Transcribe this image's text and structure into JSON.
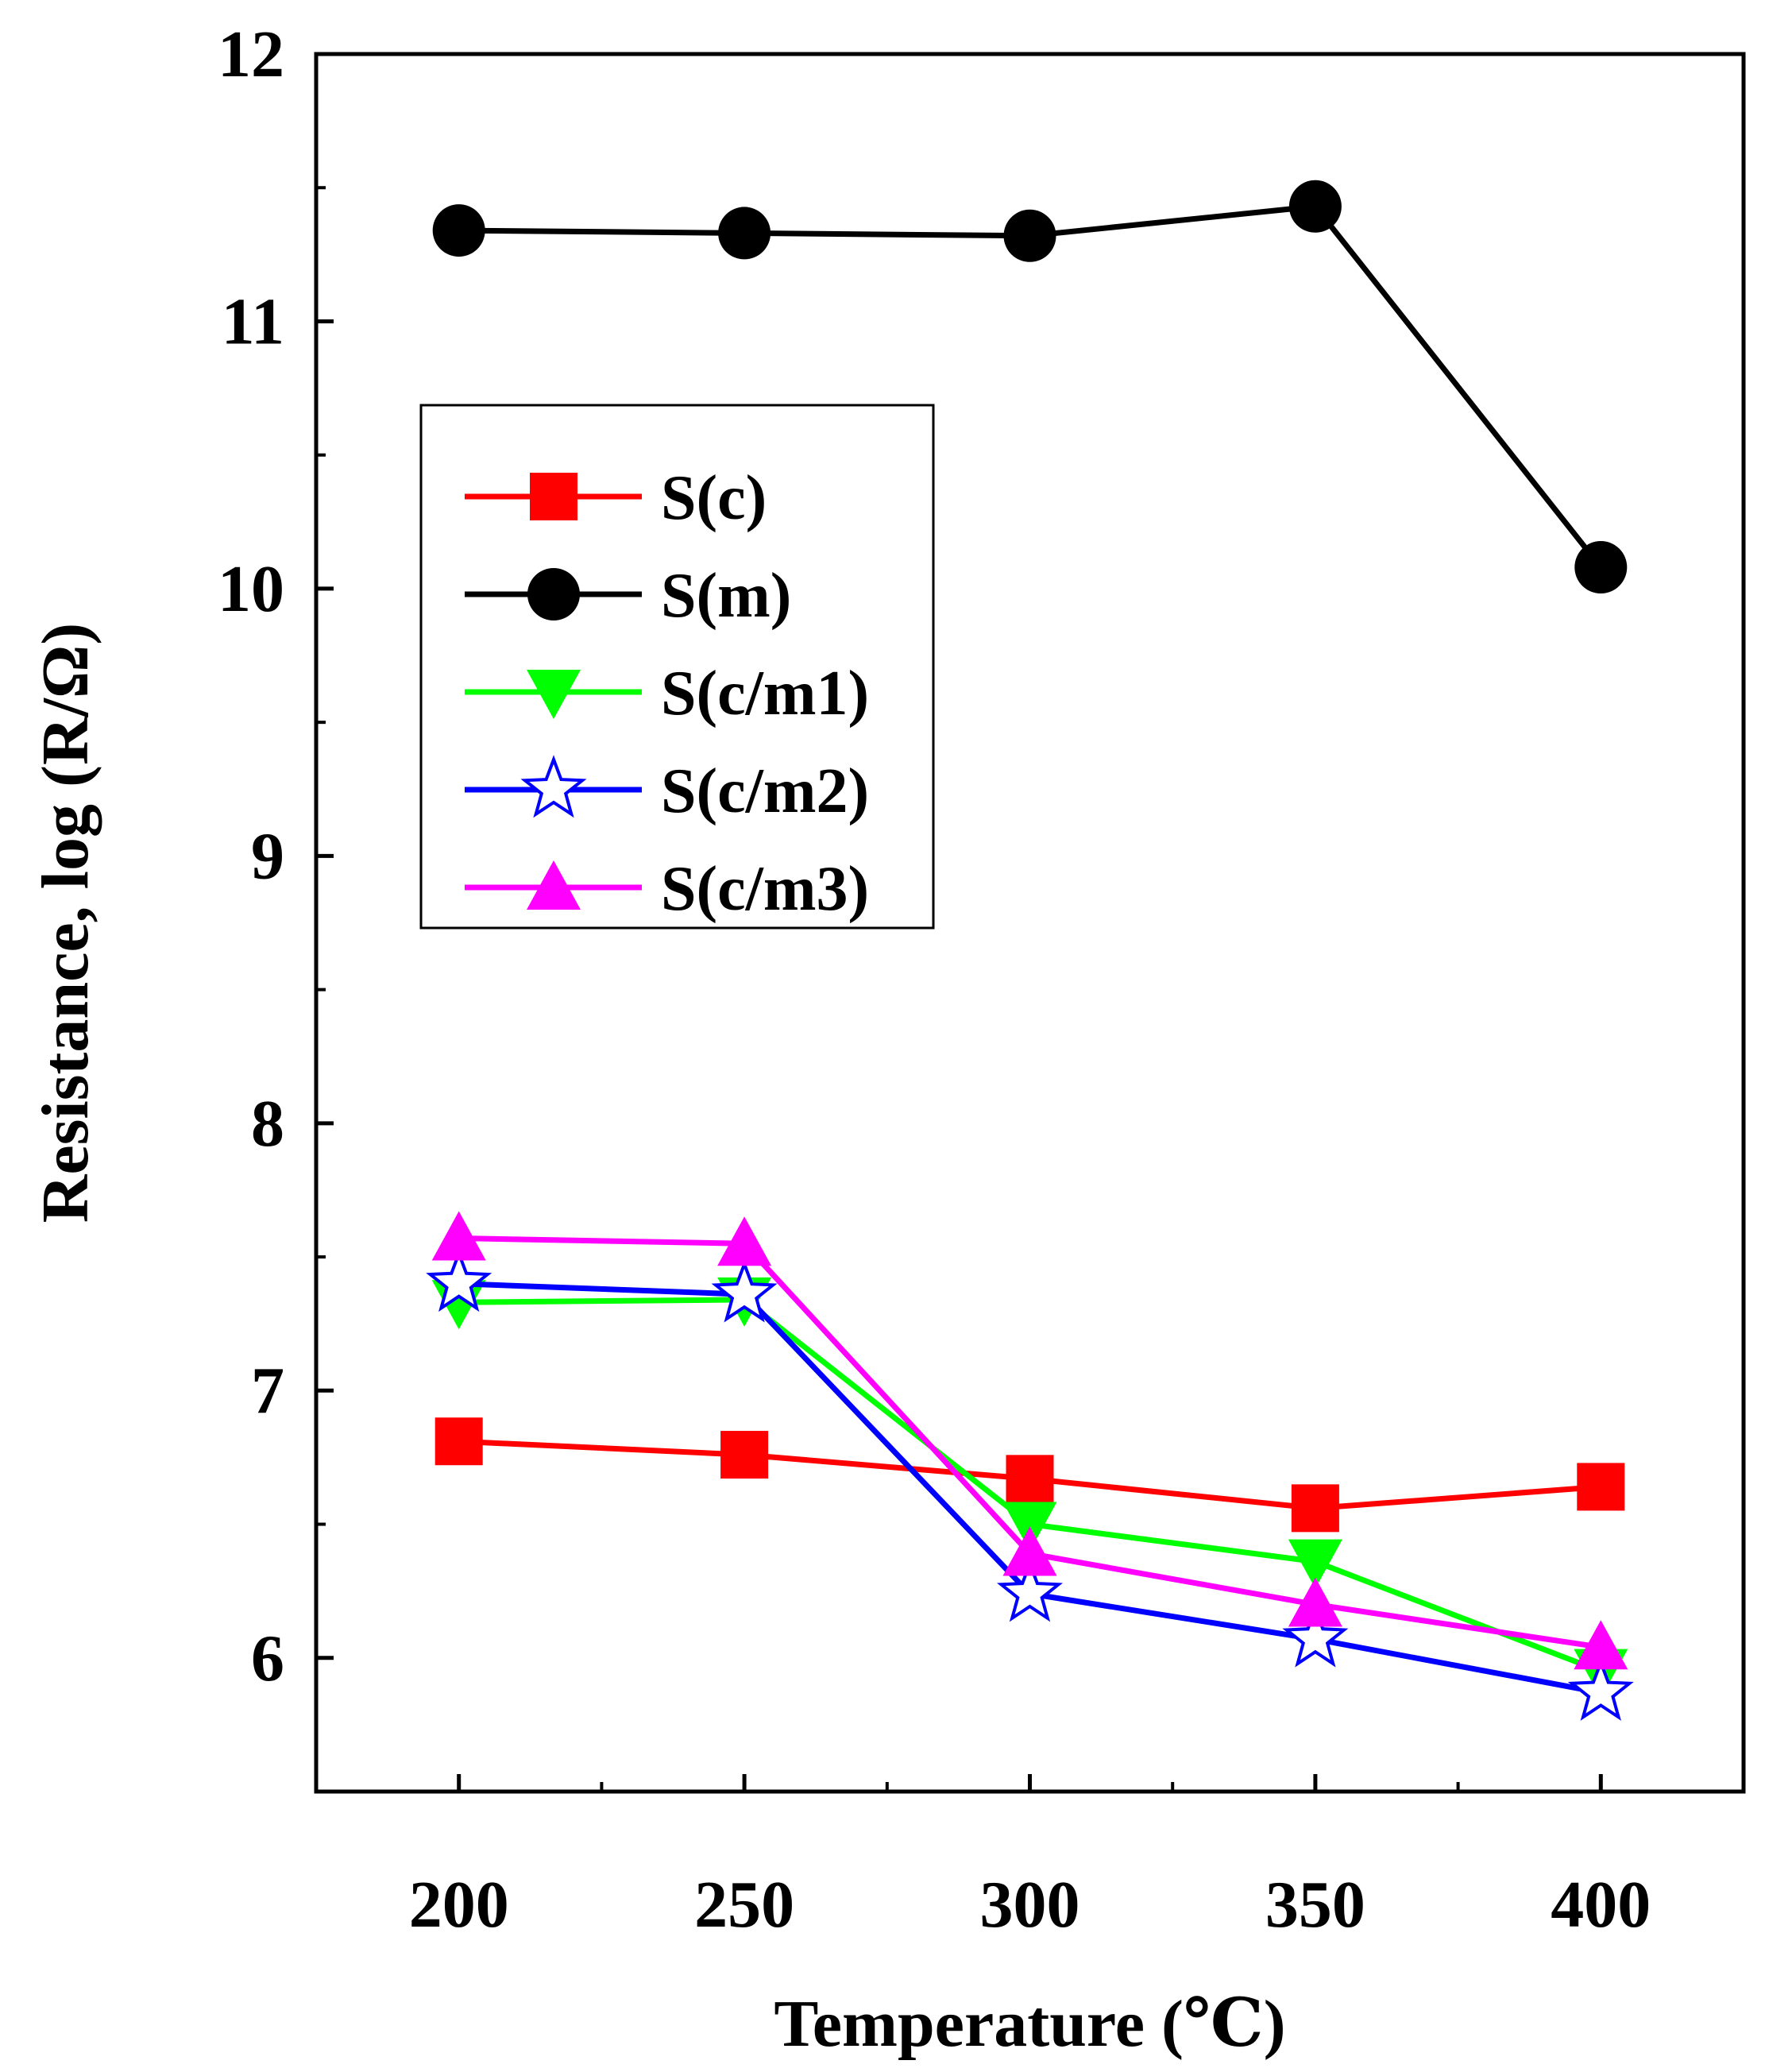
{
  "chart_data": {
    "type": "line",
    "title": "",
    "xlabel": "Temperature (℃)",
    "ylabel": "Resistance, log (R/Ω)",
    "x": [
      200,
      250,
      300,
      350,
      400
    ],
    "xlim": [
      175,
      425
    ],
    "ylim": [
      5.5,
      12
    ],
    "xticks": [
      200,
      250,
      300,
      350,
      400
    ],
    "xtick_labels": [
      "200",
      "250",
      "300",
      "350",
      "400"
    ],
    "yticks": [
      6,
      7,
      8,
      9,
      10,
      11,
      12
    ],
    "ytick_labels": [
      "6",
      "7",
      "8",
      "9",
      "10",
      "11",
      "12"
    ],
    "grid": false,
    "legend_position": "upper-left",
    "series": [
      {
        "name": "S(c)",
        "color": "#ff0000",
        "marker": "square",
        "values": [
          6.81,
          6.76,
          6.67,
          6.56,
          6.64
        ]
      },
      {
        "name": "S(m)",
        "color": "#000000",
        "marker": "circle",
        "values": [
          11.34,
          11.33,
          11.32,
          11.43,
          10.08
        ]
      },
      {
        "name": "S(c/m1)",
        "color": "#00ff00",
        "marker": "triangle-down",
        "values": [
          7.33,
          7.34,
          6.5,
          6.36,
          5.95
        ]
      },
      {
        "name": "S(c/m2)",
        "color": "#0000ff",
        "marker": "star",
        "values": [
          7.4,
          7.36,
          6.24,
          6.07,
          5.87
        ]
      },
      {
        "name": "S(c/m3)",
        "color": "#ff00ff",
        "marker": "triangle-up",
        "values": [
          7.57,
          7.55,
          6.39,
          6.2,
          6.04
        ]
      }
    ]
  }
}
